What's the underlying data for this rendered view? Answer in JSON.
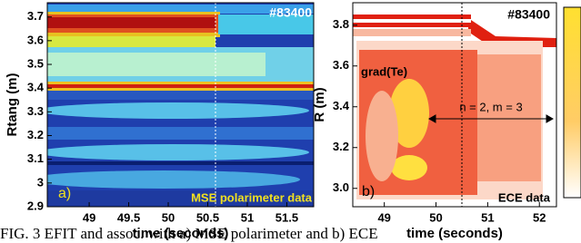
{
  "chart_data": [
    {
      "type": "contour",
      "ylabel": "Rtang (m)",
      "xlabel": "time (seconds)",
      "xlim": [
        48.47,
        51.84
      ],
      "ylim": [
        2.9,
        3.76
      ],
      "xticks": [
        49,
        49.5,
        50,
        50.5,
        51,
        51.5
      ],
      "yticks": [
        2.9,
        3,
        3.1,
        3.2,
        3.3,
        3.4,
        3.5,
        3.6,
        3.7
      ],
      "shot_label": "#83400",
      "panel_label": "a)",
      "data_label": "MSE polarimeter data"
    },
    {
      "type": "contour",
      "ylabel": "R (m)",
      "xlabel": "time (seconds)",
      "xlim": [
        48.39,
        52.33
      ],
      "ylim": [
        2.91,
        3.91
      ],
      "xticks": [
        49,
        50,
        51,
        52
      ],
      "yticks": [
        {
          "value": 3,
          "label": "3.0"
        },
        3.2,
        3.4,
        3.6,
        3.8
      ],
      "shot_label": "#83400",
      "panel_label": "b)",
      "data_label": "ECE data",
      "profile_label": "grad(Te)",
      "mode_label": "n = 2, m = 3"
    }
  ],
  "caption": "FIG. 3 EFIT and assoc. with a) MSE polarimeter and b) ECE"
}
